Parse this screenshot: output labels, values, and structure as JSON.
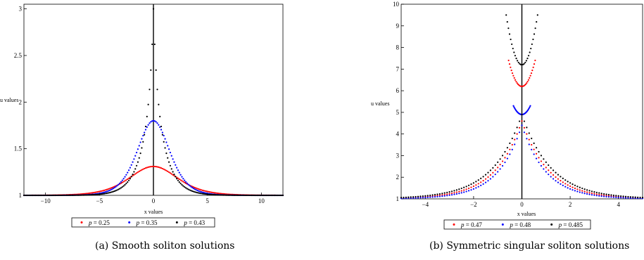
{
  "chart_data": [
    {
      "type": "scatter",
      "caption": "(a) Smooth soliton solutions",
      "xlabel": "x values",
      "ylabel": "u values",
      "xlim": [
        -12,
        12
      ],
      "ylim": [
        1,
        3.05
      ],
      "xticks": [
        -10,
        -5,
        0,
        5,
        10
      ],
      "xtick_labels": [
        "−10",
        "−5",
        "0",
        "5",
        "10"
      ],
      "yticks": [
        1,
        1.5,
        2,
        2.5,
        3
      ],
      "ytick_labels": [
        "1",
        "1.5",
        "2",
        "2.5",
        "3"
      ],
      "legend": "bottom-center",
      "series": [
        {
          "name": "p = 0.25",
          "color": "#ff0000",
          "peak": 1.31,
          "width": 3.0,
          "x": [
            -12,
            -10,
            -8,
            -6,
            -5,
            -4,
            -3,
            -2,
            -1,
            -0.5,
            0,
            0.5,
            1,
            2,
            3,
            4,
            5,
            6,
            8,
            10,
            12
          ],
          "values": [
            1.0,
            1.01,
            1.02,
            1.05,
            1.07,
            1.1,
            1.14,
            1.2,
            1.27,
            1.3,
            1.31,
            1.3,
            1.27,
            1.2,
            1.14,
            1.1,
            1.07,
            1.05,
            1.02,
            1.01,
            1.0
          ]
        },
        {
          "name": "p = 0.35",
          "color": "#0000ff",
          "peak": 1.8,
          "width": 2.0,
          "x": [
            -12,
            -10,
            -8,
            -6,
            -5,
            -4,
            -3,
            -2,
            -1,
            -0.5,
            0,
            0.5,
            1,
            2,
            3,
            4,
            5,
            6,
            8,
            10,
            12
          ],
          "values": [
            1.0,
            1.0,
            1.01,
            1.03,
            1.05,
            1.08,
            1.15,
            1.28,
            1.5,
            1.68,
            1.8,
            1.68,
            1.5,
            1.28,
            1.15,
            1.08,
            1.05,
            1.03,
            1.01,
            1.0,
            1.0
          ]
        },
        {
          "name": "p = 0.43",
          "color": "#000000",
          "peak": 3.0,
          "width": 1.4,
          "x": [
            -12,
            -10,
            -8,
            -6,
            -5,
            -4,
            -3,
            -2,
            -1,
            -0.5,
            0,
            0.5,
            1,
            2,
            3,
            4,
            5,
            6,
            8,
            10,
            12
          ],
          "values": [
            1.0,
            1.0,
            1.0,
            1.01,
            1.02,
            1.04,
            1.1,
            1.25,
            1.6,
            2.1,
            3.0,
            2.1,
            1.6,
            1.25,
            1.1,
            1.04,
            1.02,
            1.01,
            1.0,
            1.0,
            1.0
          ]
        }
      ]
    },
    {
      "type": "scatter",
      "caption": "(b) Symmetric singular soliton solutions",
      "xlabel": "x values",
      "ylabel": "u values",
      "xlim": [
        -5,
        5
      ],
      "ylim": [
        1,
        10
      ],
      "xticks": [
        -4,
        -2,
        0,
        2,
        4
      ],
      "xtick_labels": [
        "−4",
        "−2",
        "0",
        "2",
        "4"
      ],
      "yticks": [
        1,
        2,
        3,
        4,
        5,
        6,
        7,
        8,
        9,
        10
      ],
      "ytick_labels": [
        "1",
        "2",
        "3",
        "4",
        "5",
        "6",
        "7",
        "8",
        "9",
        "10"
      ],
      "legend": "bottom-center",
      "series": [
        {
          "name": "p = 0.47",
          "color": "#ff0000",
          "bottom": 6.2,
          "top": 7.4,
          "edge": 0.55,
          "decay": 1.1,
          "tail_peak": 4.6
        },
        {
          "name": "p = 0.48",
          "color": "#0000ff",
          "bottom": 4.9,
          "top": 5.3,
          "edge": 0.35,
          "decay": 1.0,
          "tail_peak": 4.4
        },
        {
          "name": "p = 0.485",
          "color": "#000000",
          "bottom": 7.2,
          "top": 9.5,
          "edge": 0.65,
          "decay": 1.2,
          "tail_peak": 4.9
        }
      ]
    }
  ]
}
